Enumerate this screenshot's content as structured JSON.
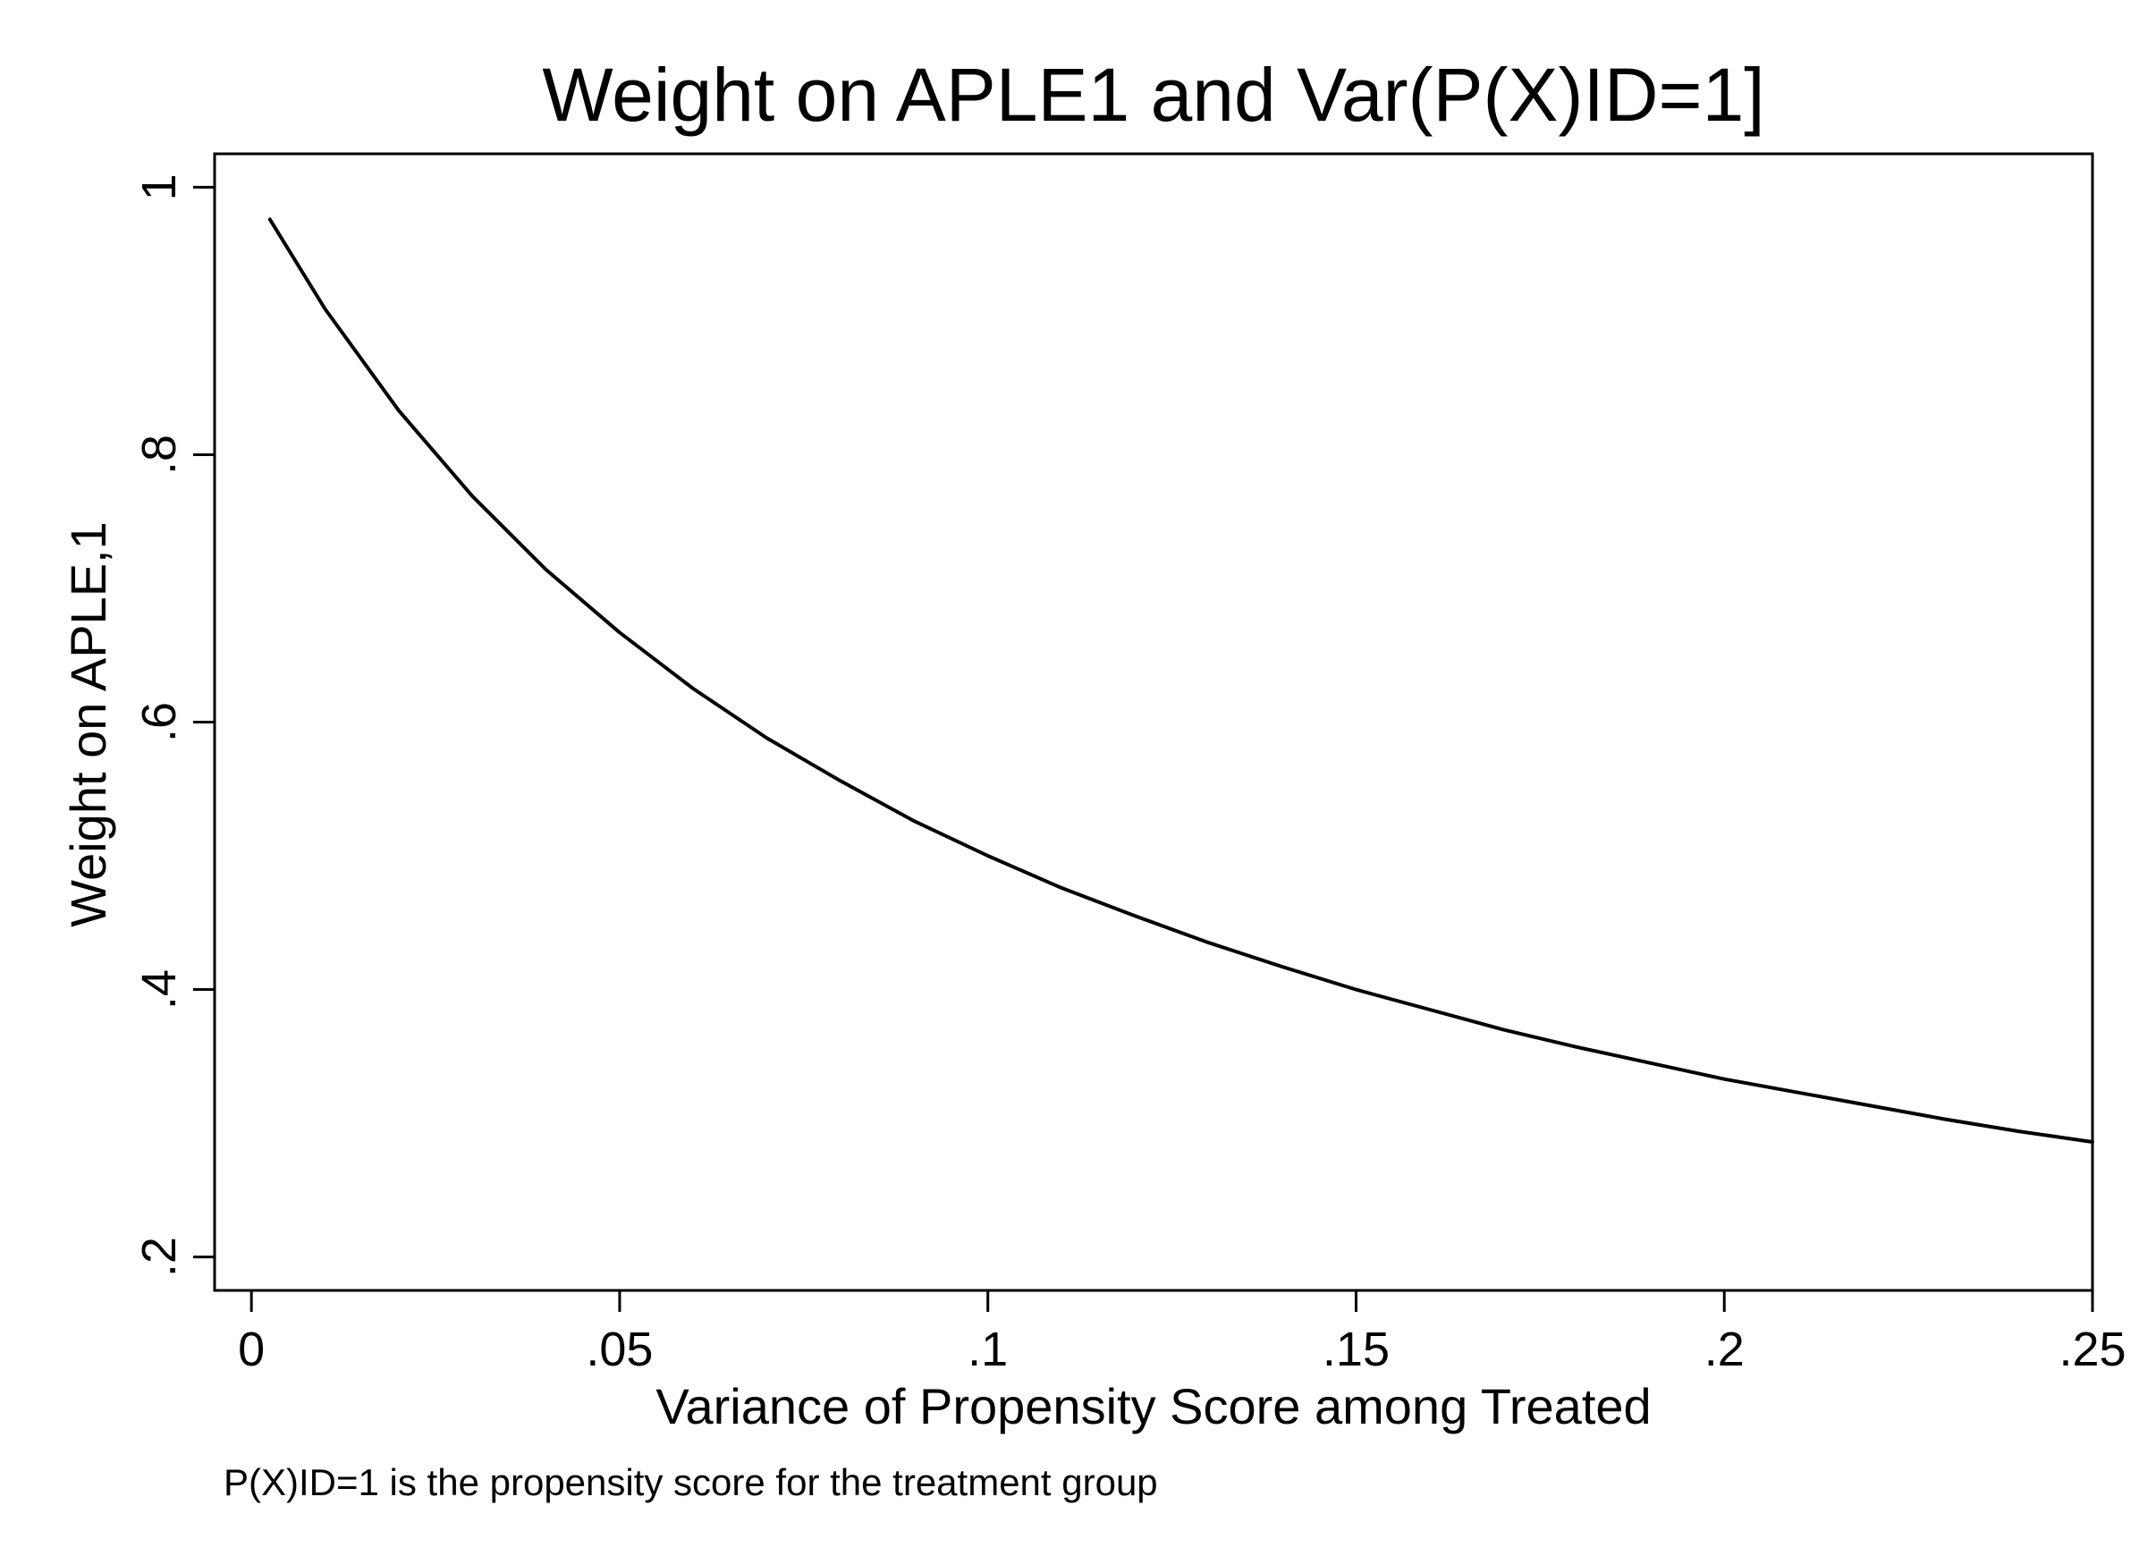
{
  "chart_data": {
    "type": "line",
    "title": "Weight on APLE1 and Var(P(X)ID=1]",
    "xlabel": "Variance of Propensity Score among Treated",
    "ylabel": "Weight on APLE,1",
    "note": "P(X)ID=1 is the propensity score for the treatment group",
    "xlim": [
      -0.005,
      0.25
    ],
    "ylim": [
      0.175,
      1.025
    ],
    "x_ticks": [
      0,
      0.05,
      0.1,
      0.15,
      0.2,
      0.25
    ],
    "x_tick_labels": [
      "0",
      ".05",
      ".1",
      ".15",
      ".2",
      ".25"
    ],
    "y_ticks": [
      0.2,
      0.4,
      0.6,
      0.8,
      1.0
    ],
    "y_tick_labels": [
      ".2",
      ".4",
      ".6",
      ".8",
      "1"
    ],
    "grid": false,
    "legend": "none",
    "line_color": "#000000",
    "series": [
      {
        "x": [
          0.0025,
          0.01,
          0.02,
          0.03,
          0.04,
          0.05,
          0.06,
          0.07,
          0.08,
          0.09,
          0.1,
          0.11,
          0.12,
          0.13,
          0.14,
          0.15,
          0.16,
          0.17,
          0.18,
          0.19,
          0.2,
          0.21,
          0.22,
          0.23,
          0.24,
          0.25
        ],
        "y": [
          0.976,
          0.909,
          0.833,
          0.769,
          0.714,
          0.667,
          0.625,
          0.588,
          0.556,
          0.526,
          0.5,
          0.476,
          0.455,
          0.435,
          0.417,
          0.4,
          0.385,
          0.37,
          0.357,
          0.345,
          0.333,
          0.323,
          0.313,
          0.303,
          0.294,
          0.286
        ]
      }
    ]
  }
}
